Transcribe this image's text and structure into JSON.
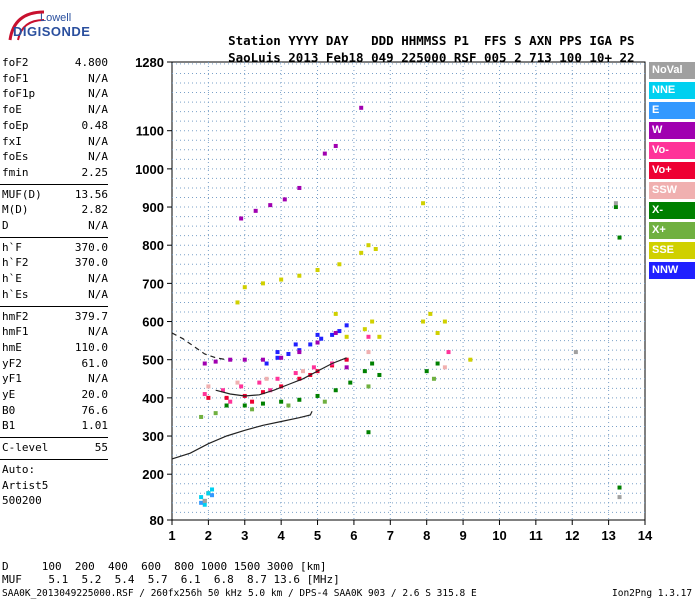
{
  "logo": {
    "top": "Lowell",
    "bottom": "DIGISONDE"
  },
  "header": {
    "labels": [
      "Station",
      "YYYY",
      "DAY",
      "DDD",
      "HHMMSS",
      "P1",
      "FFS",
      "S",
      "AXN",
      "PPS",
      "IGA",
      "PS"
    ],
    "values": [
      "SaoLuis",
      "2013",
      "Feb18",
      "049",
      "225000",
      "RSF",
      "005",
      "2",
      "713",
      "100",
      "10+",
      "22"
    ]
  },
  "params": {
    "group1": [
      {
        "k": "foF2",
        "v": "4.800"
      },
      {
        "k": "foF1",
        "v": "N/A"
      },
      {
        "k": "foF1p",
        "v": "N/A"
      },
      {
        "k": "foE",
        "v": "N/A"
      },
      {
        "k": "foEp",
        "v": "0.48"
      },
      {
        "k": "fxI",
        "v": "N/A"
      },
      {
        "k": "foEs",
        "v": "N/A"
      },
      {
        "k": "fmin",
        "v": "2.25"
      }
    ],
    "group2": [
      {
        "k": "MUF(D)",
        "v": "13.56"
      },
      {
        "k": "M(D)",
        "v": "2.82"
      },
      {
        "k": "D",
        "v": "N/A"
      }
    ],
    "group3": [
      {
        "k": "h`F",
        "v": "370.0"
      },
      {
        "k": "h`F2",
        "v": "370.0"
      },
      {
        "k": "h`E",
        "v": "N/A"
      },
      {
        "k": "h`Es",
        "v": "N/A"
      }
    ],
    "group4": [
      {
        "k": "hmF2",
        "v": "379.7"
      },
      {
        "k": "hmF1",
        "v": "N/A"
      },
      {
        "k": "hmE",
        "v": "110.0"
      },
      {
        "k": "yF2",
        "v": "61.0"
      },
      {
        "k": "yF1",
        "v": "N/A"
      },
      {
        "k": "yE",
        "v": "20.0"
      },
      {
        "k": "B0",
        "v": "76.6"
      },
      {
        "k": "B1",
        "v": "1.01"
      }
    ],
    "clevel": {
      "k": "C-level",
      "v": "55"
    },
    "auto": [
      "Auto:",
      "Artist5",
      "500200"
    ]
  },
  "legend": [
    {
      "label": "NoVal",
      "color": "#a0a0a0"
    },
    {
      "label": "NNE",
      "color": "#00d0f0"
    },
    {
      "label": "E",
      "color": "#3399ff"
    },
    {
      "label": "W",
      "color": "#a000b0"
    },
    {
      "label": "Vo-",
      "color": "#ff3399"
    },
    {
      "label": "Vo+",
      "color": "#ee0033"
    },
    {
      "label": "SSW",
      "color": "#f0b0b0"
    },
    {
      "label": "X-",
      "color": "#008000"
    },
    {
      "label": "X+",
      "color": "#70b040"
    },
    {
      "label": "SSE",
      "color": "#d0d000"
    },
    {
      "label": "NNW",
      "color": "#2020ff"
    }
  ],
  "footer": {
    "d_row": "D     100  200  400  600  800 1000 1500 3000 [km]",
    "muf_row": "MUF    5.1  5.2  5.4  5.7  6.1  6.8  8.7 13.6 [MHz]",
    "file_line": "SAA0K_2013049225000.RSF / 260fx256h 50 kHz 5.0 km / DPS-4 SAA0K 903 / 2.6 S 315.8 E",
    "version": "Ion2Png 1.3.17"
  },
  "chart_data": {
    "type": "scatter",
    "xlabel": "",
    "ylabel": "",
    "xlim": [
      1,
      14
    ],
    "ylim": [
      80,
      1280
    ],
    "x_ticks": [
      1,
      2,
      3,
      4,
      5,
      6,
      7,
      8,
      9,
      10,
      11,
      12,
      13,
      14
    ],
    "y_ticks": [
      80,
      200,
      300,
      400,
      500,
      600,
      700,
      800,
      900,
      1000,
      1100,
      1280
    ],
    "grid": true,
    "legend_position": "right",
    "series": [
      {
        "name": "NNW",
        "color": "#2020ff",
        "points": [
          [
            3.6,
            490
          ],
          [
            3.9,
            505
          ],
          [
            4.2,
            515
          ],
          [
            4.5,
            525
          ],
          [
            4.8,
            540
          ],
          [
            5.1,
            555
          ],
          [
            5.4,
            565
          ],
          [
            5.6,
            575
          ],
          [
            5.8,
            590
          ],
          [
            3.9,
            520
          ],
          [
            4.4,
            540
          ],
          [
            5.0,
            565
          ]
        ]
      },
      {
        "name": "W",
        "color": "#a000b0",
        "points": [
          [
            1.9,
            490
          ],
          [
            2.2,
            495
          ],
          [
            2.6,
            500
          ],
          [
            3.0,
            500
          ],
          [
            3.5,
            500
          ],
          [
            4.0,
            505
          ],
          [
            4.5,
            520
          ],
          [
            5.0,
            545
          ],
          [
            5.5,
            570
          ],
          [
            2.9,
            870
          ],
          [
            3.3,
            890
          ],
          [
            3.7,
            905
          ],
          [
            4.1,
            920
          ],
          [
            4.5,
            950
          ],
          [
            5.2,
            1040
          ],
          [
            5.5,
            1060
          ],
          [
            6.2,
            1160
          ],
          [
            5.8,
            480
          ]
        ]
      },
      {
        "name": "Vo+",
        "color": "#ee0033",
        "points": [
          [
            2.0,
            400
          ],
          [
            2.5,
            400
          ],
          [
            3.0,
            405
          ],
          [
            3.5,
            415
          ],
          [
            4.0,
            430
          ],
          [
            4.5,
            450
          ],
          [
            5.0,
            470
          ],
          [
            5.4,
            485
          ],
          [
            5.8,
            500
          ],
          [
            3.2,
            390
          ],
          [
            4.8,
            460
          ]
        ]
      },
      {
        "name": "Vo-",
        "color": "#ff3399",
        "points": [
          [
            1.9,
            410
          ],
          [
            2.4,
            420
          ],
          [
            2.9,
            430
          ],
          [
            3.4,
            440
          ],
          [
            3.9,
            450
          ],
          [
            4.4,
            465
          ],
          [
            4.9,
            480
          ],
          [
            5.4,
            490
          ],
          [
            2.6,
            390
          ],
          [
            3.7,
            420
          ],
          [
            6.4,
            560
          ],
          [
            8.6,
            520
          ]
        ]
      },
      {
        "name": "SSE",
        "color": "#d0d000",
        "points": [
          [
            3.0,
            690
          ],
          [
            3.5,
            700
          ],
          [
            4.0,
            710
          ],
          [
            4.5,
            720
          ],
          [
            5.0,
            735
          ],
          [
            5.6,
            750
          ],
          [
            6.2,
            780
          ],
          [
            6.4,
            800
          ],
          [
            6.6,
            790
          ],
          [
            6.3,
            580
          ],
          [
            6.5,
            600
          ],
          [
            6.7,
            560
          ],
          [
            7.9,
            600
          ],
          [
            8.1,
            620
          ],
          [
            8.3,
            570
          ],
          [
            8.5,
            600
          ],
          [
            9.2,
            500
          ],
          [
            5.5,
            620
          ],
          [
            5.8,
            560
          ],
          [
            2.8,
            650
          ],
          [
            7.9,
            910
          ]
        ]
      },
      {
        "name": "X-",
        "color": "#008000",
        "points": [
          [
            2.5,
            380
          ],
          [
            3.0,
            380
          ],
          [
            3.5,
            385
          ],
          [
            4.0,
            390
          ],
          [
            4.5,
            395
          ],
          [
            5.0,
            405
          ],
          [
            5.5,
            420
          ],
          [
            5.9,
            440
          ],
          [
            6.3,
            470
          ],
          [
            6.5,
            490
          ],
          [
            6.7,
            460
          ],
          [
            8.0,
            470
          ],
          [
            8.3,
            490
          ],
          [
            2.0,
            150
          ],
          [
            6.4,
            310
          ],
          [
            13.3,
            165
          ],
          [
            13.3,
            820
          ],
          [
            13.2,
            900
          ]
        ]
      },
      {
        "name": "X+",
        "color": "#70b040",
        "points": [
          [
            1.8,
            350
          ],
          [
            2.2,
            360
          ],
          [
            3.2,
            370
          ],
          [
            4.2,
            380
          ],
          [
            5.2,
            390
          ],
          [
            6.4,
            430
          ],
          [
            8.2,
            450
          ],
          [
            1.9,
            130
          ]
        ]
      },
      {
        "name": "SSW",
        "color": "#f0b0b0",
        "points": [
          [
            2.0,
            430
          ],
          [
            2.8,
            440
          ],
          [
            3.6,
            450
          ],
          [
            4.6,
            470
          ],
          [
            6.4,
            520
          ],
          [
            8.5,
            480
          ]
        ]
      },
      {
        "name": "NNE",
        "color": "#00d0f0",
        "points": [
          [
            1.8,
            140
          ],
          [
            2.0,
            150
          ],
          [
            2.1,
            160
          ],
          [
            1.9,
            120
          ]
        ]
      },
      {
        "name": "E",
        "color": "#3399ff",
        "points": [
          [
            2.1,
            145
          ],
          [
            1.8,
            125
          ]
        ]
      },
      {
        "name": "NoVal",
        "color": "#a0a0a0",
        "points": [
          [
            1.9,
            130
          ],
          [
            13.3,
            140
          ],
          [
            12.1,
            520
          ],
          [
            13.2,
            910
          ]
        ]
      }
    ],
    "traces": [
      {
        "style": "solid",
        "points": [
          [
            1.0,
            240
          ],
          [
            1.5,
            255
          ],
          [
            2.0,
            280
          ],
          [
            2.5,
            300
          ],
          [
            3.0,
            315
          ],
          [
            3.5,
            328
          ],
          [
            4.0,
            338
          ],
          [
            4.5,
            348
          ],
          [
            4.8,
            355
          ],
          [
            4.85,
            365
          ]
        ]
      },
      {
        "style": "dashed",
        "points": [
          [
            1.0,
            570
          ],
          [
            1.3,
            555
          ],
          [
            1.6,
            535
          ],
          [
            1.9,
            515
          ],
          [
            2.2,
            505
          ],
          [
            2.5,
            500
          ]
        ]
      },
      {
        "style": "solid",
        "points": [
          [
            2.2,
            420
          ],
          [
            2.6,
            410
          ],
          [
            3.0,
            405
          ],
          [
            3.4,
            408
          ],
          [
            3.8,
            420
          ],
          [
            4.2,
            435
          ],
          [
            4.6,
            450
          ],
          [
            5.0,
            470
          ],
          [
            5.4,
            490
          ],
          [
            5.8,
            505
          ]
        ]
      }
    ]
  }
}
